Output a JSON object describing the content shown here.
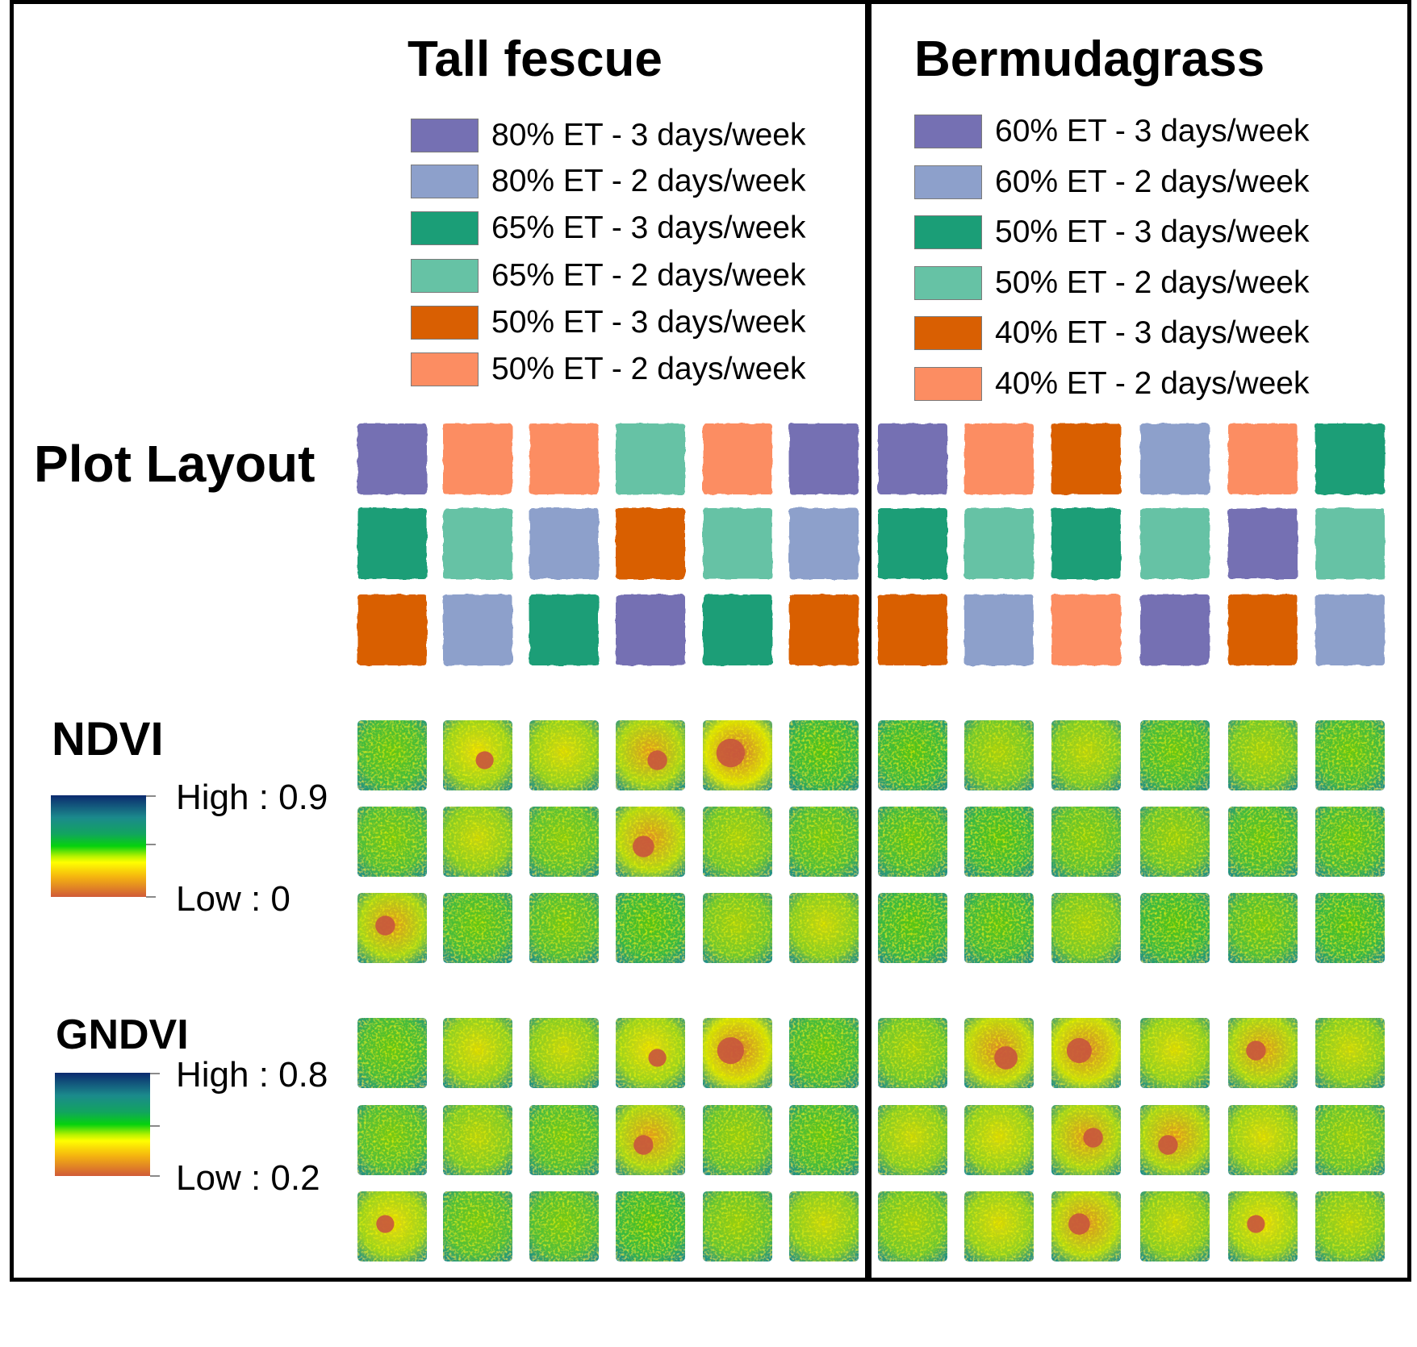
{
  "figure": {
    "species": [
      {
        "title": "Tall fescue",
        "legend": [
          {
            "label": "80% ET - 3 days/week",
            "color": "#7570b3"
          },
          {
            "label": "80% ET - 2 days/week",
            "color": "#8da0cb"
          },
          {
            "label": "65% ET - 3 days/week",
            "color": "#1b9e77"
          },
          {
            "label": "65% ET - 2 days/week",
            "color": "#66c2a5"
          },
          {
            "label": "50% ET - 3 days/week",
            "color": "#d95f02"
          },
          {
            "label": "50% ET - 2 days/week",
            "color": "#fc8d62"
          }
        ]
      },
      {
        "title": "Bermudagrass",
        "legend": [
          {
            "label": "60% ET - 3 days/week",
            "color": "#7570b3"
          },
          {
            "label": "60% ET - 2 days/week",
            "color": "#8da0cb"
          },
          {
            "label": "50% ET - 3 days/week",
            "color": "#1b9e77"
          },
          {
            "label": "50% ET - 2 days/week",
            "color": "#66c2a5"
          },
          {
            "label": "40% ET - 3 days/week",
            "color": "#d95f02"
          },
          {
            "label": "40% ET - 2 days/week",
            "color": "#fc8d62"
          }
        ]
      }
    ],
    "plot_layout": {
      "title": "Plot Layout",
      "tall_fescue_rows": [
        [
          0,
          5,
          5,
          3,
          5,
          0
        ],
        [
          2,
          3,
          1,
          4,
          3,
          1
        ],
        [
          4,
          1,
          2,
          0,
          2,
          4
        ]
      ],
      "bermudagrass_rows": [
        [
          0,
          5,
          4,
          1,
          5,
          2
        ],
        [
          2,
          3,
          2,
          3,
          0,
          3
        ],
        [
          4,
          1,
          5,
          0,
          4,
          1
        ]
      ]
    },
    "ndvi": {
      "title": "NDVI",
      "high_label": "High : 0.9",
      "low_label": "Low : 0",
      "tall_fescue_stress": [
        [
          0.15,
          0.55,
          0.5,
          0.6,
          0.85,
          0.1
        ],
        [
          0.2,
          0.45,
          0.25,
          0.65,
          0.35,
          0.2
        ],
        [
          0.6,
          0.15,
          0.2,
          0.1,
          0.35,
          0.45
        ]
      ],
      "bermudagrass_stress": [
        [
          0.1,
          0.35,
          0.4,
          0.15,
          0.35,
          0.15
        ],
        [
          0.15,
          0.1,
          0.25,
          0.3,
          0.15,
          0.15
        ],
        [
          0.1,
          0.12,
          0.35,
          0.1,
          0.2,
          0.1
        ]
      ]
    },
    "gndvi": {
      "title": "GNDVI",
      "high_label": "High : 0.8",
      "low_label": "Low : 0.2",
      "tall_fescue_stress": [
        [
          0.15,
          0.5,
          0.45,
          0.55,
          0.8,
          0.15
        ],
        [
          0.2,
          0.4,
          0.2,
          0.6,
          0.3,
          0.15
        ],
        [
          0.55,
          0.2,
          0.2,
          0.1,
          0.3,
          0.45
        ]
      ],
      "bermudagrass_stress": [
        [
          0.35,
          0.7,
          0.75,
          0.5,
          0.6,
          0.45
        ],
        [
          0.45,
          0.5,
          0.6,
          0.6,
          0.5,
          0.3
        ],
        [
          0.35,
          0.5,
          0.65,
          0.45,
          0.55,
          0.4
        ]
      ]
    }
  }
}
